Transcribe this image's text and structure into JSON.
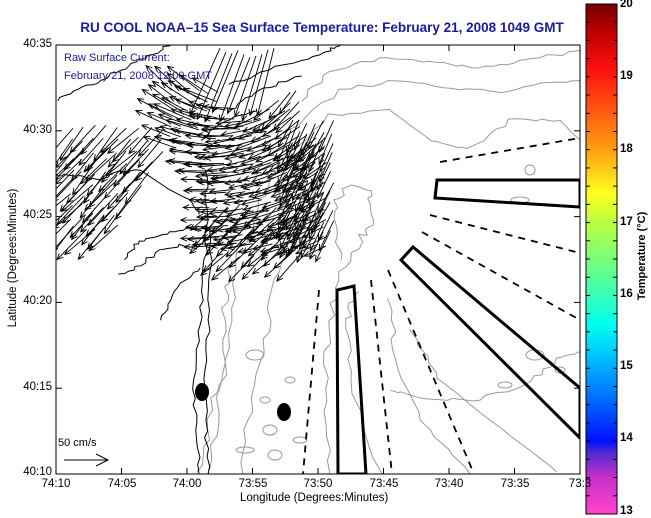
{
  "title": "RU COOL  NOAA–15  Sea Surface Temperature:  February 21, 2008 1049 GMT",
  "overlay": {
    "line1": "Raw Surface Current:",
    "line2": "February 21, 2008 12:00 GMT"
  },
  "axes": {
    "xlabel": "Longitude (Degrees:Minutes)",
    "ylabel": "Latitude (Degrees:Minutes)",
    "xticks": [
      "74:10",
      "74:05",
      "74:00",
      "73:55",
      "73:50",
      "73:45",
      "73:40",
      "73:35",
      "73:3"
    ],
    "yticks": [
      "40:35",
      "40:30",
      "40:25",
      "40:20",
      "40:15",
      "40:10"
    ]
  },
  "scale_vector": {
    "label": "50 cm/s",
    "value_cm_s": 50
  },
  "colorbar": {
    "label": "Temperature (°C)",
    "min": 13,
    "max": 20,
    "ticks": [
      "20",
      "19",
      "18",
      "17",
      "16",
      "15",
      "14",
      "13"
    ],
    "stops": [
      {
        "value": 13.0,
        "color": "#ff44cc"
      },
      {
        "value": 13.5,
        "color": "#c830c8"
      },
      {
        "value": 13.85,
        "color": "#4a2ad0"
      },
      {
        "value": 14.0,
        "color": "#0010ff"
      },
      {
        "value": 14.6,
        "color": "#0070ff"
      },
      {
        "value": 15.2,
        "color": "#00c8ff"
      },
      {
        "value": 15.6,
        "color": "#00ffee"
      },
      {
        "value": 16.3,
        "color": "#60ff90"
      },
      {
        "value": 17.0,
        "color": "#b8ff40"
      },
      {
        "value": 17.4,
        "color": "#ffff20"
      },
      {
        "value": 18.0,
        "color": "#ffa010"
      },
      {
        "value": 18.6,
        "color": "#ff5010"
      },
      {
        "value": 19.1,
        "color": "#ff1010"
      },
      {
        "value": 19.6,
        "color": "#c00000"
      },
      {
        "value": 20.0,
        "color": "#780000"
      }
    ]
  },
  "chart_data": {
    "type": "map",
    "title": "RU COOL NOAA-15 Sea Surface Temperature: February 21, 2008 1049 GMT",
    "xlabel": "Longitude (Degrees:Minutes)",
    "ylabel": "Latitude (Degrees:Minutes)",
    "xlim_minutes_west": [
      74.1667,
      73.5
    ],
    "ylim_minutes_north": [
      40.1667,
      40.5833
    ],
    "colorbar_range": [
      13,
      20
    ],
    "markers": [
      {
        "type": "filled-ellipse",
        "lon": "73:58.8",
        "lat": "40:14.6"
      },
      {
        "type": "filled-ellipse",
        "lon": "73:52.3",
        "lat": "40:13.5"
      }
    ],
    "vector_field": "Raw surface current vectors, predominantly flowing southwest",
    "scale_vector": "50 cm/s"
  },
  "colors": {
    "title_text": "#1a1aa0",
    "coastline": "#000000",
    "bathymetry": "#999999",
    "vectors": "#000000",
    "background": "#fffffd"
  }
}
